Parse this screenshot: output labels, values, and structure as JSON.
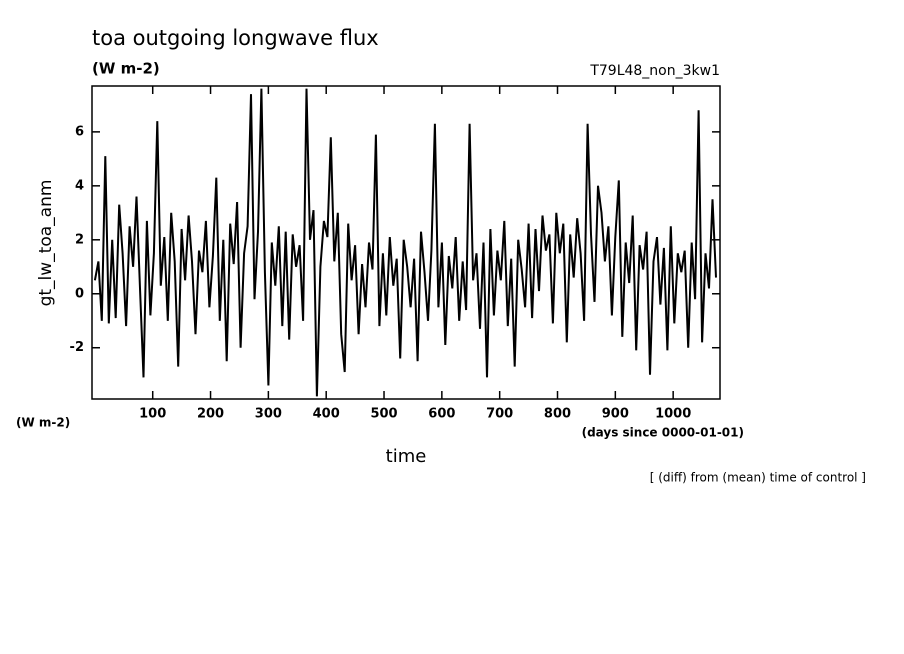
{
  "chart_data": {
    "type": "line",
    "title": "toa outgoing longwave flux",
    "subtitle": "(W m-2)",
    "run_label": "T79L48_non_3kw1",
    "y_label": "gt_lw_toa_anm",
    "y_unit": "(W m-2)",
    "x_label": "time",
    "x_unit": "(days since 0000-01-01)",
    "note": "[ (diff) from (mean) time of control ]",
    "color": "#000000",
    "xlim": [
      -5,
      1081
    ],
    "ylim": [
      -3.9,
      7.7
    ],
    "xticks": [
      100,
      200,
      300,
      400,
      500,
      600,
      700,
      800,
      900,
      1000
    ],
    "yticks": [
      -2,
      0,
      2,
      4,
      6
    ],
    "x": [
      0,
      6,
      12,
      18,
      24,
      30,
      36,
      42,
      48,
      54,
      60,
      66,
      72,
      78,
      84,
      90,
      96,
      102,
      108,
      114,
      120,
      126,
      132,
      138,
      144,
      150,
      156,
      162,
      168,
      174,
      180,
      186,
      192,
      198,
      204,
      210,
      216,
      222,
      228,
      234,
      240,
      246,
      252,
      258,
      264,
      270,
      276,
      282,
      288,
      294,
      300,
      306,
      312,
      318,
      324,
      330,
      336,
      342,
      348,
      354,
      360,
      366,
      372,
      378,
      384,
      390,
      396,
      402,
      408,
      414,
      420,
      426,
      432,
      438,
      444,
      450,
      456,
      462,
      468,
      474,
      480,
      486,
      492,
      498,
      504,
      510,
      516,
      522,
      528,
      534,
      540,
      546,
      552,
      558,
      564,
      570,
      576,
      582,
      588,
      594,
      600,
      606,
      612,
      618,
      624,
      630,
      636,
      642,
      648,
      654,
      660,
      666,
      672,
      678,
      684,
      690,
      696,
      702,
      708,
      714,
      720,
      726,
      732,
      738,
      744,
      750,
      756,
      762,
      768,
      774,
      780,
      786,
      792,
      798,
      804,
      810,
      816,
      822,
      828,
      834,
      840,
      846,
      852,
      858,
      864,
      870,
      876,
      882,
      888,
      894,
      900,
      906,
      912,
      918,
      924,
      930,
      936,
      942,
      948,
      954,
      960,
      966,
      972,
      978,
      984,
      990,
      996,
      1002,
      1008,
      1014,
      1020,
      1026,
      1032,
      1038,
      1044,
      1050,
      1056,
      1062,
      1068,
      1074
    ],
    "values": [
      0.5,
      1.2,
      -1.0,
      5.1,
      -1.1,
      2.0,
      -0.9,
      3.3,
      1.5,
      -1.2,
      2.5,
      1.0,
      3.6,
      0.2,
      -3.1,
      2.7,
      -0.8,
      1.5,
      6.4,
      0.3,
      2.1,
      -1.0,
      3.0,
      1.2,
      -2.7,
      2.4,
      0.5,
      2.9,
      1.2,
      -1.5,
      1.6,
      0.8,
      2.7,
      -0.5,
      1.4,
      4.3,
      -1.0,
      2.0,
      -2.5,
      2.6,
      1.1,
      3.4,
      -2.0,
      1.5,
      2.5,
      7.4,
      -0.2,
      2.3,
      7.6,
      0.8,
      -3.4,
      1.9,
      0.3,
      2.5,
      -1.2,
      2.3,
      -1.7,
      2.2,
      1.0,
      1.8,
      -1.0,
      7.6,
      2.0,
      3.1,
      -3.8,
      1.0,
      2.7,
      2.1,
      5.8,
      1.2,
      3.0,
      -1.5,
      -2.9,
      2.6,
      0.5,
      1.8,
      -1.5,
      1.1,
      -0.5,
      1.9,
      0.9,
      5.9,
      -1.2,
      1.5,
      -0.8,
      2.1,
      0.3,
      1.3,
      -2.4,
      2.0,
      1.0,
      -0.5,
      1.3,
      -2.5,
      2.3,
      0.8,
      -1.0,
      1.6,
      6.3,
      -0.5,
      1.9,
      -1.9,
      1.4,
      0.2,
      2.1,
      -1.0,
      1.2,
      -0.6,
      6.3,
      0.5,
      1.5,
      -1.3,
      1.9,
      -3.1,
      2.4,
      -0.8,
      1.6,
      0.5,
      2.7,
      -1.2,
      1.3,
      -2.7,
      2.0,
      0.9,
      -0.5,
      2.6,
      -0.9,
      2.4,
      0.1,
      2.9,
      1.6,
      2.2,
      -1.1,
      3.0,
      1.5,
      2.6,
      -1.8,
      2.2,
      0.6,
      2.8,
      1.5,
      -1.0,
      6.3,
      2.2,
      -0.3,
      4.0,
      3.0,
      1.2,
      2.5,
      -0.8,
      2.1,
      4.2,
      -1.6,
      1.9,
      0.4,
      2.9,
      -2.1,
      1.8,
      0.9,
      2.3,
      -3.0,
      1.2,
      2.1,
      -0.4,
      1.7,
      -2.1,
      2.5,
      -1.1,
      1.5,
      0.8,
      1.6,
      -2.0,
      1.9,
      -0.2,
      6.8,
      -1.8,
      1.5,
      0.2,
      3.5,
      0.6
    ]
  }
}
